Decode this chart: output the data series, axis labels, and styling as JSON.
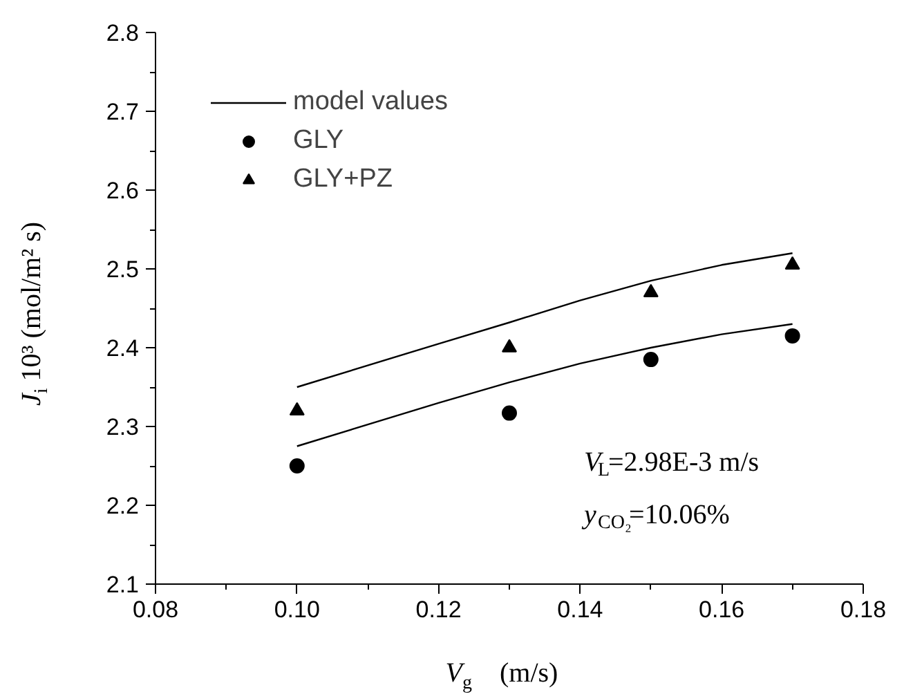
{
  "chart_data": {
    "type": "scatter",
    "xlabel": "V$_{g}$    (m/s)",
    "ylabel": "J$_{i}$ 10³ (mol/m² s)",
    "xlim": [
      0.08,
      0.18
    ],
    "xticks": [
      {
        "value": 0.08,
        "label": "0.08"
      },
      {
        "value": 0.1,
        "label": "0.10"
      },
      {
        "value": 0.12,
        "label": "0.12"
      },
      {
        "value": 0.14,
        "label": "0.14"
      },
      {
        "value": 0.16,
        "label": "0.16"
      },
      {
        "value": 0.18,
        "label": "0.18"
      }
    ],
    "ylim": [
      2.1,
      2.8
    ],
    "yticks": [
      2.1,
      2.2,
      2.3,
      2.4,
      2.5,
      2.6,
      2.7,
      2.8
    ],
    "grid": false,
    "legend": "top left",
    "series": [
      {
        "name": "model values",
        "type": "line",
        "color": "#000000",
        "marker": "none",
        "x": [
          0.1,
          0.12,
          0.13,
          0.14,
          0.15,
          0.16,
          0.17
        ],
        "values": [
          2.275,
          2.33,
          2.356,
          2.38,
          2.4,
          2.417,
          2.43
        ]
      },
      {
        "type": "line",
        "color": "#000000",
        "marker": "none",
        "x": [
          0.1,
          0.12,
          0.13,
          0.14,
          0.15,
          0.16,
          0.17
        ],
        "values": [
          2.35,
          2.405,
          2.432,
          2.46,
          2.485,
          2.505,
          2.52
        ]
      },
      {
        "name": "GLY",
        "color": "#000000",
        "marker": "circle",
        "x": [
          0.1,
          0.13,
          0.15,
          0.17
        ],
        "values": [
          2.25,
          2.317,
          2.385,
          2.415
        ]
      },
      {
        "name": "GLY+PZ",
        "color": "#000000",
        "marker": "triangle",
        "x": [
          0.1,
          0.13,
          0.15,
          0.17
        ],
        "values": [
          2.32,
          2.4,
          2.47,
          2.505
        ]
      }
    ],
    "annotations": [
      "V$_{L}$=2.98E-3 m/s",
      "y$_{CO₂}$=10.06%"
    ]
  }
}
